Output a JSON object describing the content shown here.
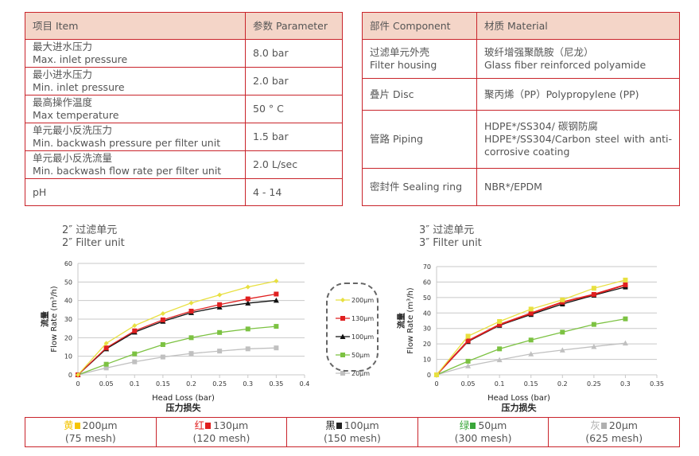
{
  "spec_table": {
    "headers": [
      "项目 Item",
      "参数 Parameter"
    ],
    "rows": [
      {
        "zh": "最大进水压力",
        "en": "Max. inlet pressure",
        "value": "8.0 bar"
      },
      {
        "zh": "最小进水压力",
        "en": "Min. inlet pressure",
        "value": "2.0 bar"
      },
      {
        "zh": "最高操作温度",
        "en": "Max temperature",
        "value": "50 ° C"
      },
      {
        "zh": "单元最小反洗压力",
        "en": "Min. backwash pressure per filter unit",
        "value": "1.5 bar"
      },
      {
        "zh": "单元最小反洗流量",
        "en": "Min. backwash flow rate per filter unit",
        "value": "2.0 L/sec"
      },
      {
        "zh": "",
        "en": "pH",
        "value": "4 - 14"
      }
    ]
  },
  "material_table": {
    "headers": [
      "部件 Component",
      "材质 Material"
    ],
    "rows": [
      {
        "component": "过滤单元外壳\nFilter housing",
        "material": "玻纤增强聚酰胺（尼龙）\nGlass fiber reinforced polyamide"
      },
      {
        "component": "叠片 Disc",
        "material": "聚丙烯（PP）Polypropylene (PP)"
      },
      {
        "component": "管路 Piping",
        "material": "HDPE*/SS304/ 碳钢防腐\nHDPE*/SS304/Carbon steel with anti-corrosive coating"
      },
      {
        "component": "密封件 Sealing ring",
        "material": "NBR*/EPDM"
      }
    ]
  },
  "legend": {
    "placement": "between charts",
    "items": [
      "200µm",
      "130µm",
      "100µm",
      "50µm",
      "20µm"
    ]
  },
  "mesh_legend": [
    {
      "color_zh": "黄",
      "size": "200µm",
      "mesh": "(75 mesh)",
      "color": "#f5c400"
    },
    {
      "color_zh": "红",
      "size": "130µm",
      "mesh": "(120 mesh)",
      "color": "#e02020"
    },
    {
      "color_zh": "黑",
      "size": "100µm",
      "mesh": "(150 mesh)",
      "color": "#222222"
    },
    {
      "color_zh": "绿",
      "size": "50µm",
      "mesh": "(300 mesh)",
      "color": "#3aa63a"
    },
    {
      "color_zh": "灰",
      "size": "20µm",
      "mesh": "(625 mesh)",
      "color": "#b0b0b0"
    }
  ],
  "chart_data": [
    {
      "type": "line",
      "title_zh": "2″ 过滤单元",
      "title": "2″ Filter unit",
      "ylabel_zh": "流量",
      "ylabel": "Flow Rate (m³/h)",
      "xlabel": "Head Loss (bar)",
      "xlabel_zh": "压力损失",
      "xlim": [
        0,
        0.4
      ],
      "ylim": [
        0,
        60
      ],
      "xticks": [
        "0",
        "0.05",
        "0.1",
        "0.15",
        "0.2",
        "0.25",
        "0.3",
        "0.35",
        "0.4"
      ],
      "yticks": [
        "0",
        "10",
        "20",
        "30",
        "40",
        "50",
        "60"
      ],
      "grid": true,
      "x": [
        0,
        0.05,
        0.1,
        0.15,
        0.2,
        0.25,
        0.3,
        0.35
      ],
      "series": [
        {
          "name": "200µm",
          "color": "#e8e040",
          "marker": "diamond",
          "values": [
            0,
            17,
            26.5,
            33,
            38.7,
            43,
            47.3,
            50.5
          ]
        },
        {
          "name": "130µm",
          "color": "#e02020",
          "marker": "square",
          "values": [
            0,
            14.5,
            23.7,
            29.6,
            34.3,
            37.8,
            40.9,
            43.5
          ]
        },
        {
          "name": "100µm",
          "color": "#111111",
          "marker": "triangle",
          "values": [
            0,
            14,
            23,
            28.8,
            33.5,
            36.5,
            38.6,
            40.1
          ]
        },
        {
          "name": "50µm",
          "color": "#7cc242",
          "marker": "square",
          "values": [
            0,
            5.7,
            11.3,
            16.3,
            20,
            22.8,
            24.7,
            26.1
          ]
        },
        {
          "name": "20µm",
          "color": "#c0c0c0",
          "marker": "square",
          "values": [
            0,
            3.7,
            7,
            9.6,
            11.5,
            12.8,
            14,
            14.5
          ]
        }
      ]
    },
    {
      "type": "line",
      "title_zh": "3″ 过滤单元",
      "title": "3″ Filter unit",
      "ylabel_zh": "流量",
      "ylabel": "Flow Rate (m³/h)",
      "xlabel": "Head Loss (bar)",
      "xlabel_zh": "压力损失",
      "xlim": [
        0,
        0.35
      ],
      "ylim": [
        0,
        70
      ],
      "xticks": [
        "0",
        "0.05",
        "0.1",
        "0.15",
        "0.2",
        "0.25",
        "0.3",
        "0.35"
      ],
      "yticks": [
        "0",
        "10",
        "20",
        "30",
        "40",
        "50",
        "60",
        "70"
      ],
      "grid": true,
      "x": [
        0,
        0.05,
        0.1,
        0.15,
        0.2,
        0.25,
        0.3
      ],
      "series": [
        {
          "name": "200µm",
          "color": "#e8e040",
          "marker": "square",
          "values": [
            0,
            25,
            34.5,
            42.5,
            48.5,
            56,
            61.3
          ]
        },
        {
          "name": "130µm",
          "color": "#e02020",
          "marker": "square",
          "values": [
            0,
            22,
            32.5,
            39.8,
            47,
            52,
            58.2
          ]
        },
        {
          "name": "100µm",
          "color": "#111111",
          "marker": "square",
          "values": [
            0,
            21.5,
            32,
            39,
            45.8,
            51.5,
            56.8
          ]
        },
        {
          "name": "50µm",
          "color": "#7cc242",
          "marker": "square",
          "values": [
            0,
            8.8,
            16.8,
            22.5,
            27.6,
            32.6,
            36.2
          ]
        },
        {
          "name": "20µm",
          "color": "#c0c0c0",
          "marker": "triangle",
          "values": [
            0,
            5.8,
            9.7,
            13.5,
            16,
            18.3,
            20.5
          ]
        }
      ]
    }
  ]
}
